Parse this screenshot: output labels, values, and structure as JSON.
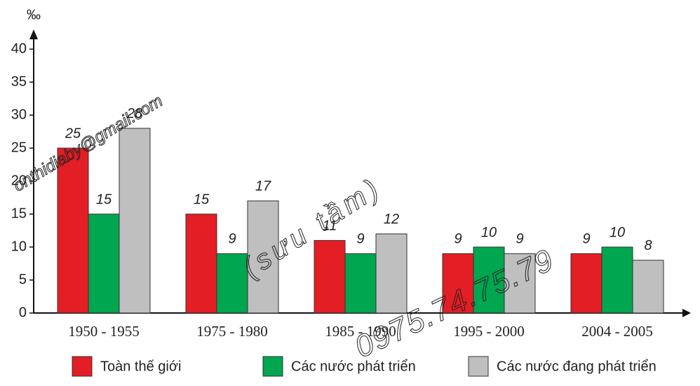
{
  "chart_data": {
    "type": "bar",
    "y_label": "‰",
    "categories": [
      "1950 - 1955",
      "1975 - 1980",
      "1985 - 1990",
      "1995 - 2000",
      "2004 - 2005"
    ],
    "series": [
      {
        "name": "Toàn thế giới",
        "color": "#e31e24",
        "values": [
          25,
          15,
          11,
          9,
          9
        ]
      },
      {
        "name": "Các nước phát triển",
        "color": "#00a650",
        "values": [
          15,
          9,
          9,
          10,
          10
        ]
      },
      {
        "name": "Các nước đang phát triển",
        "color": "#bfbfbf",
        "values": [
          28,
          17,
          12,
          9,
          8
        ]
      }
    ],
    "ylim": [
      0,
      40
    ],
    "yticks": [
      0,
      5,
      10,
      15,
      20,
      25,
      30,
      35,
      40
    ],
    "annotations": [
      "onthidiaby@gmail.com",
      "(sưu tầm)",
      "0975.74.75.79"
    ]
  }
}
